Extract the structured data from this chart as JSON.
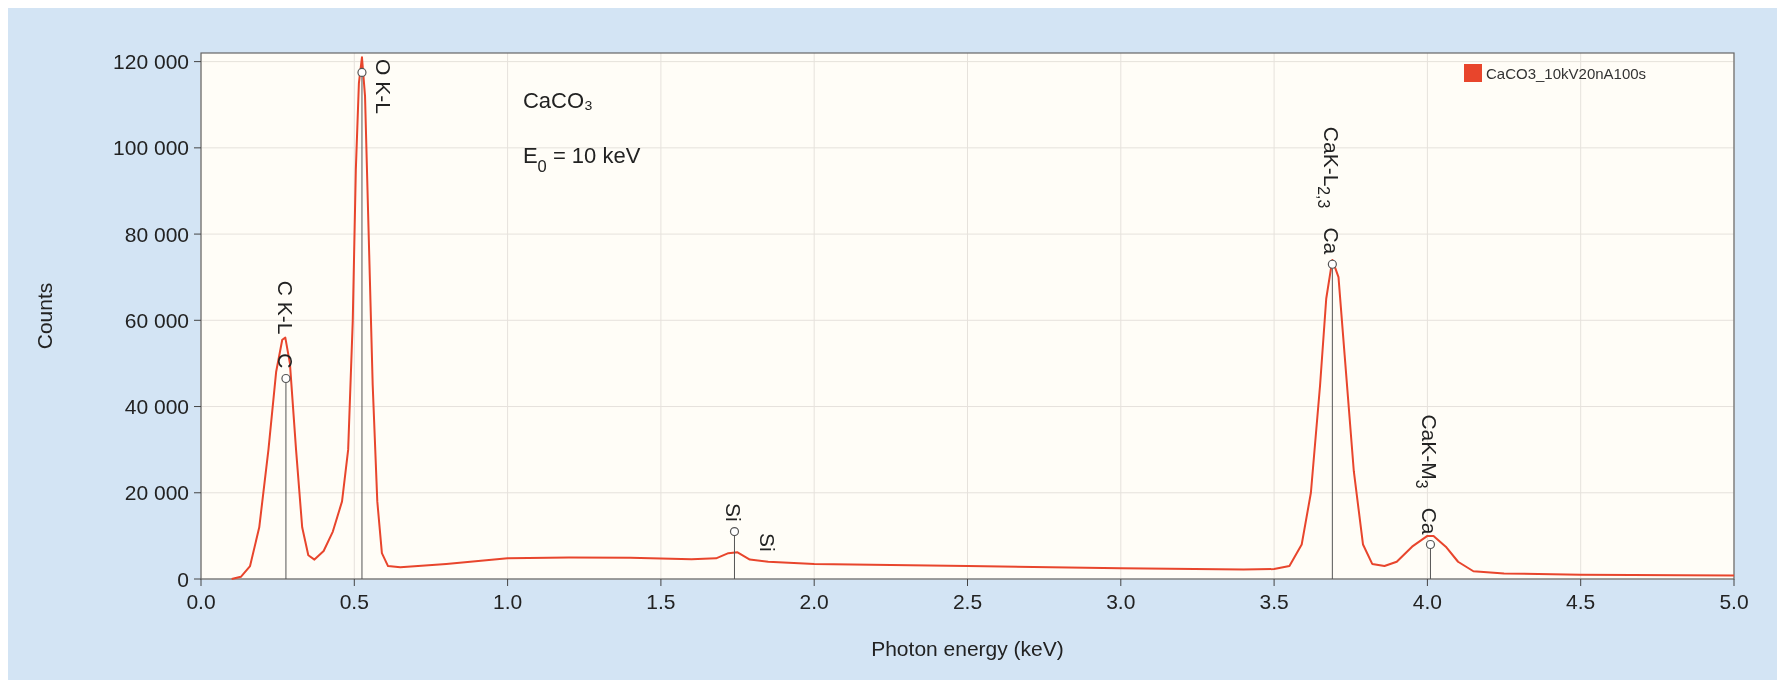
{
  "chart_data": {
    "type": "line",
    "xlabel": "Photon energy (keV)",
    "ylabel": "Counts",
    "xlim": [
      0,
      5
    ],
    "xticks": [
      {
        "value": 0,
        "label": "0.0"
      },
      {
        "value": 0.5,
        "label": "0.5"
      },
      {
        "value": 1,
        "label": "1.0"
      },
      {
        "value": 1.5,
        "label": "1.5"
      },
      {
        "value": 2,
        "label": "2.0"
      },
      {
        "value": 2.5,
        "label": "2.5"
      },
      {
        "value": 3,
        "label": "3.0"
      },
      {
        "value": 3.5,
        "label": "3.5"
      },
      {
        "value": 4,
        "label": "4.0"
      },
      {
        "value": 4.5,
        "label": "4.5"
      },
      {
        "value": 5,
        "label": "5.0"
      }
    ],
    "ylim": [
      0,
      122000
    ],
    "yticks": [
      0,
      {
        "value": 20000,
        "label": "20 000"
      },
      {
        "value": 40000,
        "label": "40 000"
      },
      {
        "value": 60000,
        "label": "60 000"
      },
      {
        "value": 80000,
        "label": "80 000"
      },
      {
        "value": 100000,
        "label": "100 000"
      },
      {
        "value": 120000,
        "label": "120 000"
      }
    ],
    "grid": true,
    "legend": "top right",
    "series": [
      {
        "name": "CaCO3_10kV20nA100s",
        "color": "#e8452c",
        "x": [
          0.1,
          0.13,
          0.16,
          0.19,
          0.22,
          0.245,
          0.265,
          0.275,
          0.29,
          0.31,
          0.33,
          0.35,
          0.37,
          0.4,
          0.43,
          0.46,
          0.48,
          0.495,
          0.505,
          0.515,
          0.525,
          0.535,
          0.545,
          0.56,
          0.575,
          0.59,
          0.61,
          0.65,
          0.8,
          1.0,
          1.2,
          1.4,
          1.6,
          1.68,
          1.72,
          1.75,
          1.79,
          1.85,
          2.0,
          2.5,
          3.0,
          3.4,
          3.5,
          3.55,
          3.59,
          3.62,
          3.65,
          3.67,
          3.69,
          3.71,
          3.73,
          3.76,
          3.79,
          3.82,
          3.86,
          3.9,
          3.95,
          4.0,
          4.02,
          4.06,
          4.1,
          4.15,
          4.25,
          4.5,
          5.0
        ],
        "values": [
          0,
          500,
          3000,
          12000,
          30000,
          48000,
          55500,
          56000,
          50000,
          30000,
          12000,
          5500,
          4500,
          6500,
          11000,
          18000,
          30000,
          60000,
          95000,
          115000,
          121000,
          112000,
          85000,
          45000,
          18000,
          6000,
          3000,
          2700,
          3500,
          4800,
          5000,
          4900,
          4600,
          4800,
          6000,
          6200,
          4500,
          4000,
          3500,
          3000,
          2500,
          2200,
          2300,
          3000,
          8000,
          20000,
          45000,
          65000,
          74000,
          70000,
          52000,
          25000,
          8000,
          3500,
          3000,
          4000,
          7500,
          10000,
          10000,
          7500,
          4000,
          1800,
          1300,
          1000,
          800
        ]
      },
      {
        "type": "lollipop",
        "color": "#555555",
        "marker": "circle",
        "x": [
          0.277,
          0.525,
          1.74,
          3.69,
          4.01
        ],
        "values": [
          46500,
          117500,
          11000,
          73000,
          8000
        ]
      }
    ],
    "annotations": [
      "CaCO₃",
      "E$_{0}$ = 10 keV",
      {
        "text": "C",
        "x": 0.277,
        "y": 46500
      },
      {
        "text": "C K-L",
        "x": 0.277,
        "y": 46500
      },
      {
        "text": "O K-L",
        "x": 0.525,
        "y": 117500
      },
      {
        "text": "Si",
        "x": 1.74,
        "y": 11000
      },
      {
        "text": "Si",
        "x": 1.85,
        "y": 4000
      },
      {
        "text": "Ca",
        "x": 3.69,
        "y": 73000
      },
      {
        "text": "CaK-L$_{2,3}$",
        "x": 3.69,
        "y": 73000
      },
      {
        "text": "Ca",
        "x": 4.01,
        "y": 8000
      },
      {
        "text": "CaK-M$_{3}$",
        "x": 4.01,
        "y": 8000
      }
    ]
  }
}
